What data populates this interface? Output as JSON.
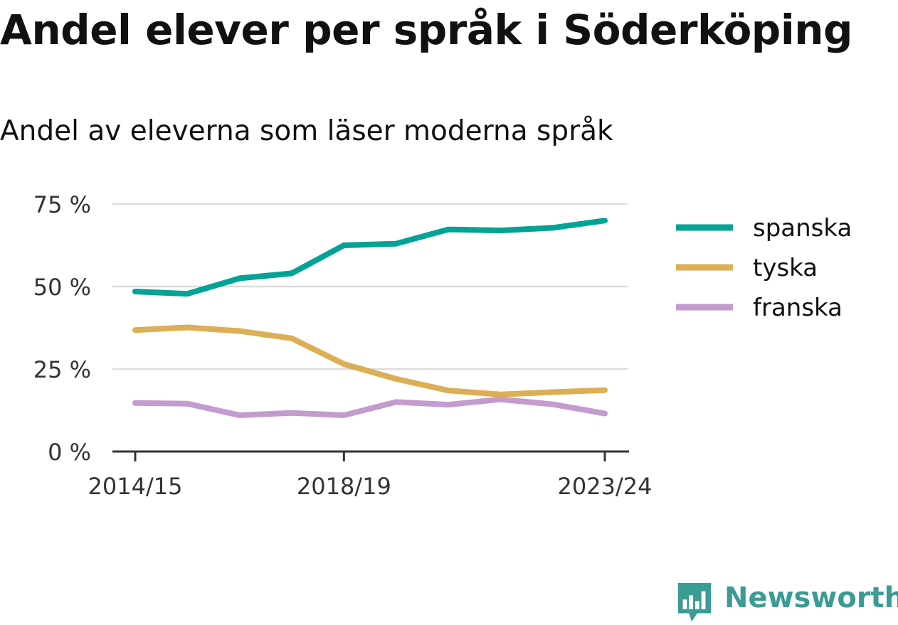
{
  "title": "Andel elever per språk i Söderköping",
  "subtitle": "Andel av eleverna som läser moderna språk",
  "brand": {
    "name": "Newsworthy",
    "color": "#3a9c94",
    "icon": "newsworthy-logo-icon"
  },
  "chart_data": {
    "type": "line",
    "x": [
      "2014/15",
      "2015/16",
      "2016/17",
      "2017/18",
      "2018/19",
      "2019/20",
      "2020/21",
      "2021/22",
      "2022/23",
      "2023/24"
    ],
    "x_tick_labels": [
      "2014/15",
      "2018/19",
      "2023/24"
    ],
    "y_tick_labels": [
      "0 %",
      "25 %",
      "50 %",
      "75 %"
    ],
    "y_ticks": [
      0,
      25,
      50,
      75
    ],
    "ylim": [
      0,
      75
    ],
    "grid": true,
    "legend_position": "right",
    "series": [
      {
        "name": "spanska",
        "color": "#00a396",
        "values": [
          48.5,
          47.8,
          52.5,
          54,
          62.5,
          63,
          67.3,
          67,
          67.8,
          70
        ]
      },
      {
        "name": "tyska",
        "color": "#dcae55",
        "values": [
          36.8,
          37.6,
          36.5,
          34.3,
          26.5,
          22,
          18.5,
          17.3,
          18,
          18.6
        ]
      },
      {
        "name": "franska",
        "color": "#c39bce",
        "values": [
          14.7,
          14.5,
          11,
          11.7,
          11,
          15,
          14.2,
          15.8,
          14.3,
          11.5
        ]
      }
    ]
  }
}
